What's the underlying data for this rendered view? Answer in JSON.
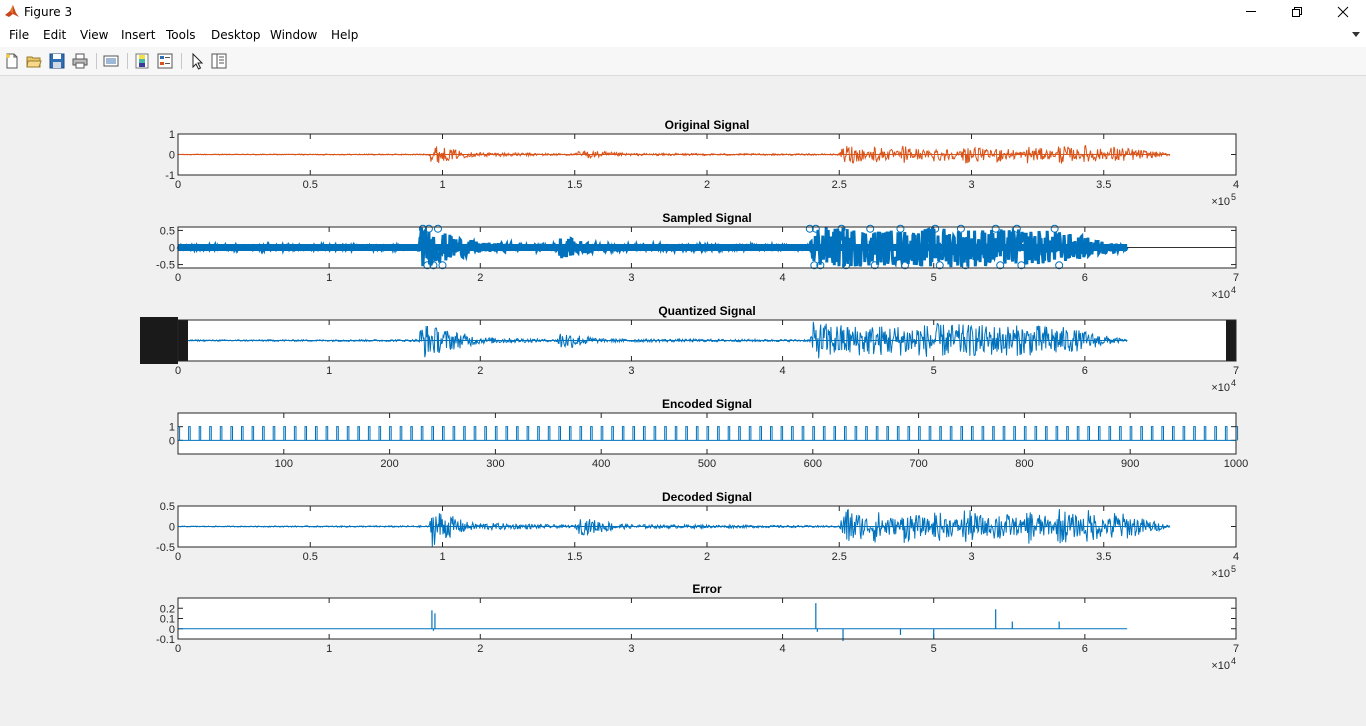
{
  "window": {
    "title": "Figure 3",
    "icon": "matlab-logo-icon",
    "controls": [
      "minimize-icon",
      "restore-icon",
      "close-icon"
    ]
  },
  "menu": {
    "items": [
      "File",
      "Edit",
      "View",
      "Insert",
      "Tools",
      "Desktop",
      "Window",
      "Help"
    ]
  },
  "toolbar": {
    "icons": [
      "new-figure-icon",
      "open-file-icon",
      "save-icon",
      "print-icon",
      "link-plot-icon",
      "colorbar-icon",
      "legend-icon",
      "edit-plot-pointer-icon",
      "property-inspector-icon"
    ]
  },
  "colors": {
    "original": "#d95319",
    "signal": "#0072bd",
    "axes": "#262626",
    "grid": "#e6e6e6",
    "marker": "#1a1a1a"
  },
  "chart_data": [
    {
      "type": "line",
      "title": "Original Signal",
      "color": "original",
      "xlim": [
        0,
        400000
      ],
      "ylim": [
        -1,
        1
      ],
      "xticks": [
        "0",
        "0.5",
        "1",
        "1.5",
        "2",
        "2.5",
        "3",
        "3.5",
        "4"
      ],
      "yticks": [
        "-1",
        "0",
        "1"
      ],
      "exponent": "10",
      "exponent_power": "5",
      "envelope": {
        "x": [
          0,
          95000,
          96000,
          100000,
          110000,
          150000,
          152000,
          170000,
          250000,
          252000,
          262000,
          263000,
          273000,
          274000,
          285000,
          286000,
          296000,
          297000,
          308000,
          309000,
          320000,
          321000,
          332000,
          333000,
          342000,
          343000,
          352000,
          353000,
          375000
        ],
        "amp": [
          0.02,
          0.03,
          0.55,
          0.35,
          0.12,
          0.04,
          0.22,
          0.06,
          0.03,
          0.55,
          0.2,
          0.45,
          0.15,
          0.45,
          0.15,
          0.42,
          0.15,
          0.48,
          0.18,
          0.42,
          0.15,
          0.45,
          0.15,
          0.5,
          0.2,
          0.48,
          0.18,
          0.42,
          0.05
        ]
      }
    },
    {
      "type": "scatter",
      "title": "Sampled Signal",
      "color": "signal",
      "xlim": [
        0,
        70000
      ],
      "ylim": [
        -0.6,
        0.6
      ],
      "xticks": [
        "0",
        "1",
        "2",
        "3",
        "4",
        "5",
        "6",
        "7"
      ],
      "yticks": [
        "-0.5",
        "0",
        "0.5"
      ],
      "exponent": "10",
      "exponent_power": "4",
      "envelope": {
        "x": [
          0,
          15900,
          16100,
          17000,
          20000,
          25000,
          25300,
          28000,
          41800,
          42000,
          44500,
          48000,
          50000,
          54000,
          58000,
          62800
        ],
        "amp": [
          0.05,
          0.05,
          0.6,
          0.5,
          0.15,
          0.06,
          0.32,
          0.08,
          0.05,
          0.62,
          0.58,
          0.5,
          0.6,
          0.55,
          0.5,
          0.06
        ]
      }
    },
    {
      "type": "line",
      "title": "Quantized Signal",
      "color": "signal",
      "xlim": [
        0,
        70000
      ],
      "ylim": [
        -0.6,
        0.6
      ],
      "xticks": [
        "0",
        "1",
        "2",
        "3",
        "4",
        "5",
        "6",
        "7"
      ],
      "yticks": [],
      "exponent": "10",
      "exponent_power": "4",
      "envelope": {
        "x": [
          0,
          15900,
          16100,
          17000,
          20000,
          25000,
          25300,
          28000,
          41800,
          42000,
          44500,
          48000,
          50000,
          54000,
          58000,
          62800
        ],
        "amp": [
          0.02,
          0.03,
          0.55,
          0.4,
          0.1,
          0.03,
          0.28,
          0.05,
          0.03,
          0.55,
          0.45,
          0.45,
          0.5,
          0.45,
          0.45,
          0.02
        ]
      }
    },
    {
      "type": "line",
      "title": "Encoded Signal",
      "color": "signal",
      "xlim": [
        0,
        1000
      ],
      "ylim": [
        -1,
        2
      ],
      "xticks": [
        "100",
        "200",
        "300",
        "400",
        "500",
        "600",
        "700",
        "800",
        "900",
        "1000"
      ],
      "yticks": [
        "0",
        "1"
      ],
      "pulse_period": 10,
      "pulse_high": 1,
      "pulse_low": 0
    },
    {
      "type": "line",
      "title": "Decoded Signal",
      "color": "signal",
      "xlim": [
        0,
        400000
      ],
      "ylim": [
        -0.5,
        0.5
      ],
      "xticks": [
        "0",
        "0.5",
        "1",
        "1.5",
        "2",
        "2.5",
        "3",
        "3.5",
        "4"
      ],
      "yticks": [
        "-0.5",
        "0",
        "0.5"
      ],
      "exponent": "10",
      "exponent_power": "5",
      "envelope": {
        "x": [
          0,
          95000,
          96000,
          100000,
          110000,
          150000,
          152000,
          170000,
          250000,
          252000,
          262000,
          263000,
          273000,
          274000,
          285000,
          286000,
          296000,
          297000,
          308000,
          309000,
          320000,
          321000,
          332000,
          333000,
          342000,
          343000,
          352000,
          353000,
          375000
        ],
        "amp": [
          0.01,
          0.02,
          0.5,
          0.35,
          0.1,
          0.03,
          0.22,
          0.05,
          0.02,
          0.5,
          0.2,
          0.42,
          0.15,
          0.42,
          0.15,
          0.4,
          0.15,
          0.46,
          0.18,
          0.42,
          0.15,
          0.45,
          0.15,
          0.48,
          0.2,
          0.45,
          0.18,
          0.4,
          0.03
        ]
      }
    },
    {
      "type": "line",
      "title": "Error",
      "color": "signal",
      "xlim": [
        0,
        70000
      ],
      "ylim": [
        -0.1,
        0.3
      ],
      "xticks": [
        "0",
        "1",
        "2",
        "3",
        "4",
        "5",
        "6",
        "7"
      ],
      "yticks": [
        "-0.1",
        "0",
        "0.1",
        "0.2"
      ],
      "exponent": "10",
      "exponent_power": "4",
      "baseline_until": 62800,
      "spikes": [
        {
          "x": 16800,
          "y": 0.18
        },
        {
          "x": 16900,
          "y": -0.02
        },
        {
          "x": 17000,
          "y": 0.15
        },
        {
          "x": 42200,
          "y": 0.25
        },
        {
          "x": 42300,
          "y": -0.03
        },
        {
          "x": 44000,
          "y": -0.12
        },
        {
          "x": 47800,
          "y": -0.06
        },
        {
          "x": 50000,
          "y": -0.1
        },
        {
          "x": 54100,
          "y": 0.19
        },
        {
          "x": 55200,
          "y": 0.07
        },
        {
          "x": 58300,
          "y": 0.07
        }
      ]
    }
  ]
}
